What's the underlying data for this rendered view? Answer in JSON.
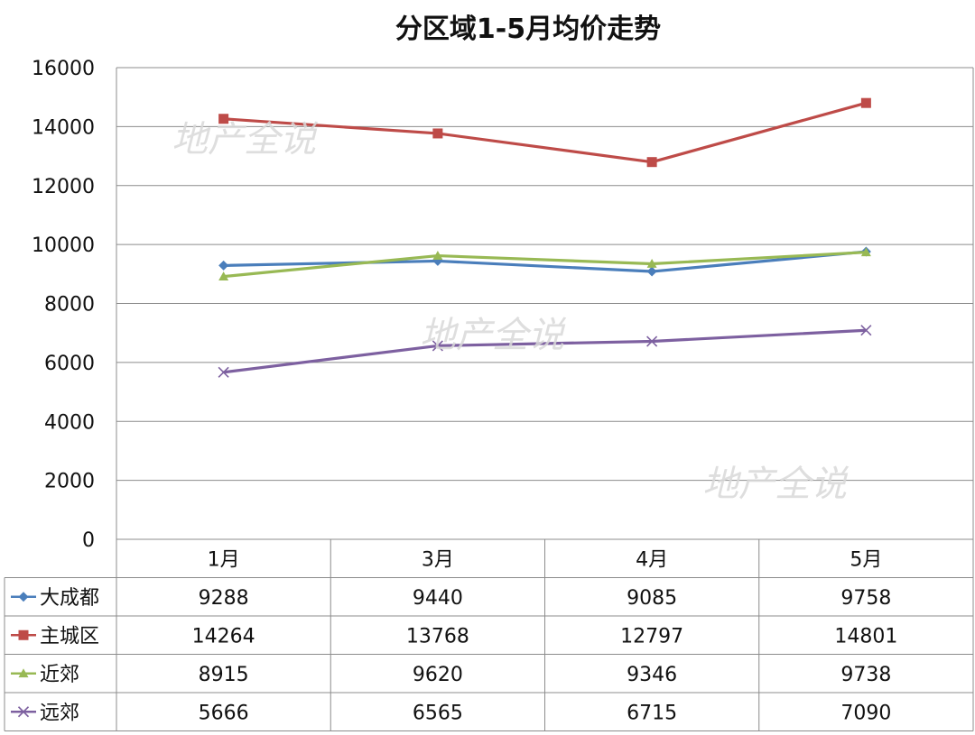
{
  "chart_data": {
    "type": "line",
    "title": "分区域1-5月均价走势",
    "categories": [
      "1月",
      "3月",
      "4月",
      "5月"
    ],
    "ylim": [
      0,
      16000
    ],
    "yticks": [
      0,
      2000,
      4000,
      6000,
      8000,
      10000,
      12000,
      14000,
      16000
    ],
    "grid": true,
    "legend": "data-table",
    "series": [
      {
        "name": "大成都",
        "values": [
          9288,
          9440,
          9085,
          9758
        ],
        "color": "#4a7ebb",
        "marker": "diamond"
      },
      {
        "name": "主城区",
        "values": [
          14264,
          13768,
          12797,
          14801
        ],
        "color": "#be4b48",
        "marker": "square"
      },
      {
        "name": "近郊",
        "values": [
          8915,
          9620,
          9346,
          9738
        ],
        "color": "#98b954",
        "marker": "triangle"
      },
      {
        "name": "远郊",
        "values": [
          5666,
          6565,
          6715,
          7090
        ],
        "color": "#7d60a0",
        "marker": "x"
      }
    ]
  },
  "watermark": "地产全说"
}
